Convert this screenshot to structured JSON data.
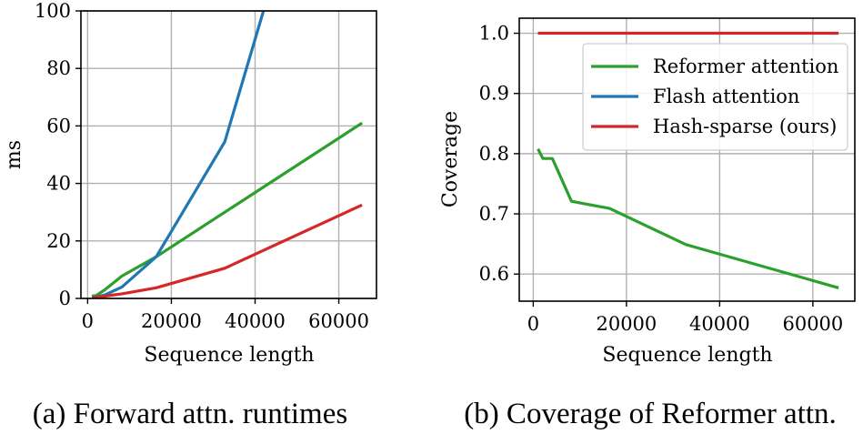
{
  "colors": {
    "green": "#2ca02c",
    "blue": "#1f77b4",
    "red": "#d62728",
    "grid": "#b0b0b0"
  },
  "chart_data": [
    {
      "type": "line",
      "caption": "(a) Forward attn. runtimes",
      "xlabel": "Sequence length",
      "ylabel": "ms",
      "xlim": [
        -1600,
        69000
      ],
      "ylim": [
        0,
        100
      ],
      "xticks": [
        0,
        20000,
        40000,
        60000
      ],
      "xtick_labels": [
        "0",
        "20000",
        "40000",
        "60000"
      ],
      "yticks": [
        0,
        20,
        40,
        60,
        80,
        100
      ],
      "ytick_labels": [
        "0",
        "20",
        "40",
        "60",
        "80",
        "100"
      ],
      "grid": true,
      "legend": "none",
      "series": [
        {
          "color": "#2ca02c",
          "x": [
            1024,
            2048,
            4096,
            8192,
            16384,
            32768,
            65536
          ],
          "y": [
            0.8,
            1.0,
            3.0,
            7.8,
            14.5,
            30.0,
            61.0
          ]
        },
        {
          "color": "#1f77b4",
          "x": [
            1024,
            2048,
            4096,
            8192,
            16384,
            32768,
            42000
          ],
          "y": [
            0.3,
            0.5,
            1.2,
            4.0,
            14.5,
            54.5,
            100
          ]
        },
        {
          "color": "#d62728",
          "x": [
            1024,
            2048,
            4096,
            8192,
            16384,
            32768,
            65536
          ],
          "y": [
            0.2,
            0.4,
            0.8,
            1.6,
            3.7,
            10.5,
            32.5
          ]
        }
      ]
    },
    {
      "type": "line",
      "caption": "(b) Coverage of Reformer attn.",
      "xlabel": "Sequence length",
      "ylabel": "Coverage",
      "xlim": [
        -3000,
        69000
      ],
      "ylim": [
        0.555,
        1.025
      ],
      "xticks": [
        0,
        20000,
        40000,
        60000
      ],
      "xtick_labels": [
        "0",
        "20000",
        "40000",
        "60000"
      ],
      "yticks": [
        0.6,
        0.7,
        0.8,
        0.9,
        1.0
      ],
      "ytick_labels": [
        "0.6",
        "0.7",
        "0.8",
        "0.9",
        "1.0"
      ],
      "grid": true,
      "legend": "top-right",
      "series": [
        {
          "name": "Reformer attention",
          "color": "#2ca02c",
          "x": [
            1024,
            2048,
            4096,
            8192,
            16384,
            32768,
            65536
          ],
          "y": [
            0.808,
            0.792,
            0.792,
            0.721,
            0.709,
            0.649,
            0.577
          ]
        },
        {
          "name": "Flash attention",
          "color": "#1f77b4",
          "x": [],
          "y": []
        },
        {
          "name": "Hash-sparse (ours)",
          "color": "#d62728",
          "x": [
            1024,
            65536
          ],
          "y": [
            1.0,
            1.0
          ]
        }
      ]
    }
  ]
}
